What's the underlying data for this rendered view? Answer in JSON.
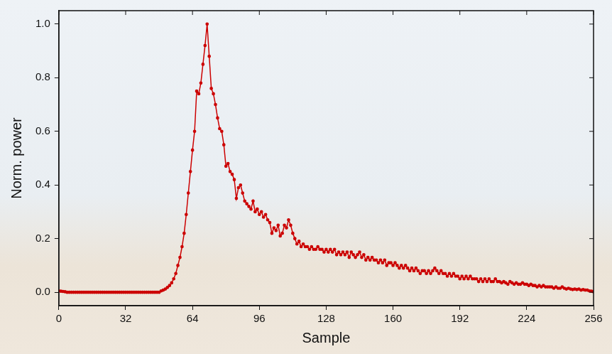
{
  "chart_data": {
    "type": "line",
    "x_label": "Sample",
    "y_label": "Norm. power",
    "color": "#cc0000",
    "marker": "circle",
    "grid": false,
    "x": [
      0,
      1,
      2,
      3,
      4,
      5,
      6,
      7,
      8,
      9,
      10,
      11,
      12,
      13,
      14,
      15,
      16,
      17,
      18,
      19,
      20,
      21,
      22,
      23,
      24,
      25,
      26,
      27,
      28,
      29,
      30,
      31,
      32,
      33,
      34,
      35,
      36,
      37,
      38,
      39,
      40,
      41,
      42,
      43,
      44,
      45,
      46,
      47,
      48,
      49,
      50,
      51,
      52,
      53,
      54,
      55,
      56,
      57,
      58,
      59,
      60,
      61,
      62,
      63,
      64,
      65,
      66,
      67,
      68,
      69,
      70,
      71,
      72,
      73,
      74,
      75,
      76,
      77,
      78,
      79,
      80,
      81,
      82,
      83,
      84,
      85,
      86,
      87,
      88,
      89,
      90,
      91,
      92,
      93,
      94,
      95,
      96,
      97,
      98,
      99,
      100,
      101,
      102,
      103,
      104,
      105,
      106,
      107,
      108,
      109,
      110,
      111,
      112,
      113,
      114,
      115,
      116,
      117,
      118,
      119,
      120,
      121,
      122,
      123,
      124,
      125,
      126,
      127,
      128,
      129,
      130,
      131,
      132,
      133,
      134,
      135,
      136,
      137,
      138,
      139,
      140,
      141,
      142,
      143,
      144,
      145,
      146,
      147,
      148,
      149,
      150,
      151,
      152,
      153,
      154,
      155,
      156,
      157,
      158,
      159,
      160,
      161,
      162,
      163,
      164,
      165,
      166,
      167,
      168,
      169,
      170,
      171,
      172,
      173,
      174,
      175,
      176,
      177,
      178,
      179,
      180,
      181,
      182,
      183,
      184,
      185,
      186,
      187,
      188,
      189,
      190,
      191,
      192,
      193,
      194,
      195,
      196,
      197,
      198,
      199,
      200,
      201,
      202,
      203,
      204,
      205,
      206,
      207,
      208,
      209,
      210,
      211,
      212,
      213,
      214,
      215,
      216,
      217,
      218,
      219,
      220,
      221,
      222,
      223,
      224,
      225,
      226,
      227,
      228,
      229,
      230,
      231,
      232,
      233,
      234,
      235,
      236,
      237,
      238,
      239,
      240,
      241,
      242,
      243,
      244,
      245,
      246,
      247,
      248,
      249,
      250,
      251,
      252,
      253,
      254,
      255,
      256
    ],
    "values": [
      0.005,
      0.004,
      0.003,
      0.002,
      0,
      0,
      0,
      0,
      0,
      0,
      0,
      0,
      0,
      0,
      0,
      0,
      0,
      0,
      0,
      0,
      0,
      0,
      0,
      0,
      0,
      0,
      0,
      0,
      0,
      0,
      0,
      0,
      0,
      0,
      0,
      0,
      0,
      0,
      0,
      0,
      0,
      0,
      0,
      0,
      0,
      0,
      0,
      0,
      0,
      0.005,
      0.008,
      0.012,
      0.018,
      0.025,
      0.035,
      0.05,
      0.07,
      0.1,
      0.13,
      0.17,
      0.22,
      0.29,
      0.37,
      0.45,
      0.53,
      0.6,
      0.75,
      0.74,
      0.78,
      0.85,
      0.92,
      1.0,
      0.88,
      0.76,
      0.74,
      0.7,
      0.65,
      0.61,
      0.6,
      0.55,
      0.47,
      0.48,
      0.45,
      0.44,
      0.42,
      0.35,
      0.39,
      0.4,
      0.37,
      0.34,
      0.33,
      0.32,
      0.31,
      0.34,
      0.3,
      0.31,
      0.29,
      0.3,
      0.28,
      0.29,
      0.27,
      0.26,
      0.22,
      0.24,
      0.23,
      0.25,
      0.21,
      0.22,
      0.25,
      0.24,
      0.27,
      0.25,
      0.22,
      0.2,
      0.18,
      0.19,
      0.17,
      0.18,
      0.17,
      0.17,
      0.16,
      0.17,
      0.16,
      0.16,
      0.17,
      0.16,
      0.16,
      0.15,
      0.16,
      0.15,
      0.16,
      0.15,
      0.16,
      0.14,
      0.15,
      0.14,
      0.15,
      0.14,
      0.15,
      0.13,
      0.15,
      0.14,
      0.13,
      0.14,
      0.15,
      0.13,
      0.14,
      0.12,
      0.13,
      0.12,
      0.13,
      0.12,
      0.12,
      0.11,
      0.12,
      0.11,
      0.12,
      0.1,
      0.11,
      0.11,
      0.1,
      0.11,
      0.1,
      0.09,
      0.1,
      0.09,
      0.1,
      0.09,
      0.08,
      0.09,
      0.08,
      0.09,
      0.08,
      0.07,
      0.08,
      0.08,
      0.07,
      0.08,
      0.07,
      0.08,
      0.09,
      0.08,
      0.07,
      0.08,
      0.07,
      0.07,
      0.06,
      0.07,
      0.06,
      0.07,
      0.06,
      0.06,
      0.05,
      0.06,
      0.05,
      0.06,
      0.05,
      0.06,
      0.05,
      0.05,
      0.05,
      0.04,
      0.05,
      0.04,
      0.05,
      0.04,
      0.05,
      0.04,
      0.04,
      0.05,
      0.04,
      0.04,
      0.035,
      0.04,
      0.035,
      0.03,
      0.04,
      0.035,
      0.03,
      0.035,
      0.03,
      0.03,
      0.035,
      0.03,
      0.03,
      0.025,
      0.03,
      0.025,
      0.025,
      0.02,
      0.025,
      0.02,
      0.025,
      0.02,
      0.02,
      0.02,
      0.02,
      0.015,
      0.02,
      0.015,
      0.015,
      0.02,
      0.015,
      0.012,
      0.015,
      0.012,
      0.01,
      0.012,
      0.01,
      0.012,
      0.008,
      0.01,
      0.008,
      0.008,
      0.005,
      0.004,
      0.002
    ],
    "xlim": [
      0,
      256
    ],
    "xticks": [
      0,
      32,
      64,
      96,
      128,
      160,
      192,
      224,
      256
    ],
    "ylim": [
      -0.05,
      1.05
    ],
    "yticks": [
      {
        "value": 0,
        "label": "0.0"
      },
      0.2,
      0.4,
      0.6,
      0.8,
      {
        "value": 1,
        "label": "1.0"
      }
    ]
  }
}
